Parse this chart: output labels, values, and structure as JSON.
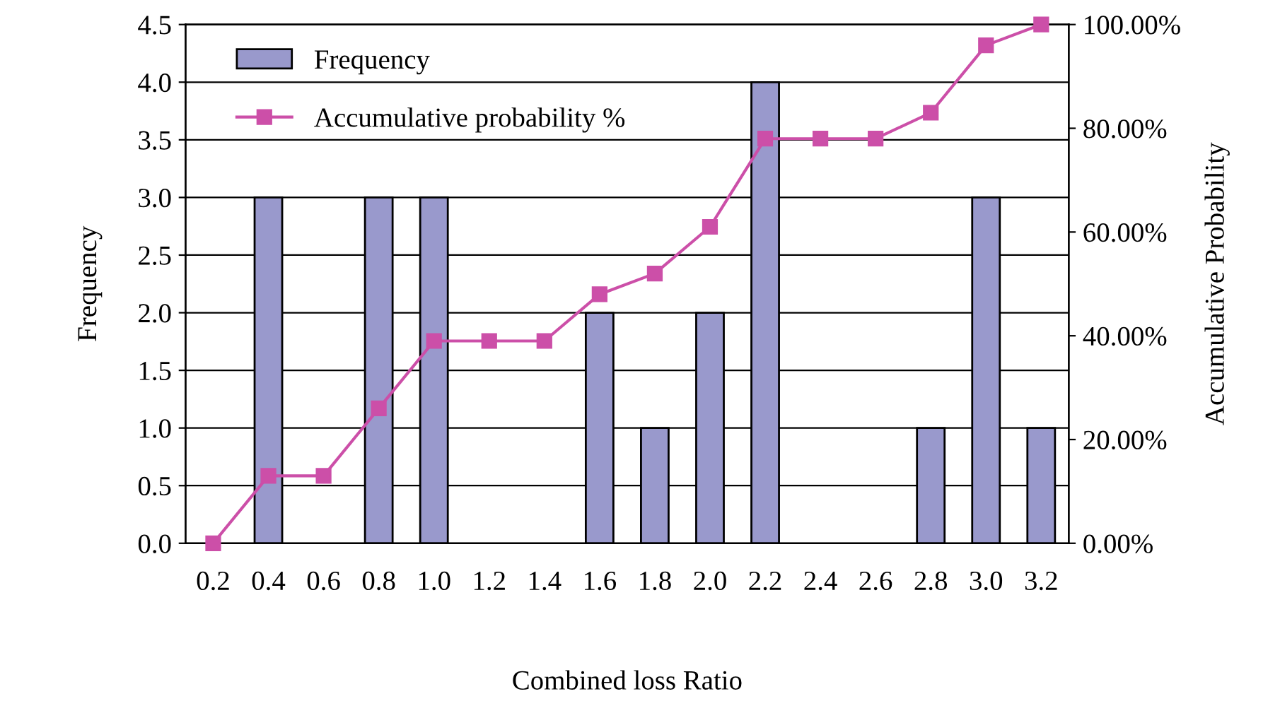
{
  "chart_data": {
    "type": "bar",
    "xlabel": "Combined loss Ratio",
    "ylabel": "Frequency",
    "y2label": "Accumulative Probability",
    "categories": [
      "0.2",
      "0.4",
      "0.6",
      "0.8",
      "1.0",
      "1.2",
      "1.4",
      "1.6",
      "1.8",
      "2.0",
      "2.2",
      "2.4",
      "2.6",
      "2.8",
      "3.0",
      "3.2"
    ],
    "series": [
      {
        "name": "Frequency",
        "color": "#9999cc",
        "values": [
          0,
          3,
          0,
          3,
          3,
          0,
          0,
          2,
          1,
          2,
          4,
          0,
          0,
          1,
          3,
          1
        ]
      },
      {
        "name": "Accumulative probability %",
        "type": "line",
        "axis": "y2",
        "color": "#cc4fa8",
        "marker": "square",
        "line_style": "solid",
        "values": [
          0,
          13,
          13,
          26,
          39,
          39,
          39,
          48,
          52,
          61,
          78,
          78,
          78,
          83,
          96,
          100
        ]
      }
    ],
    "ylim": [
      0,
      4.5
    ],
    "yticks": [
      {
        "value": 0,
        "label": "0.0"
      },
      {
        "value": 0.5,
        "label": "0.5"
      },
      {
        "value": 1,
        "label": "1.0"
      },
      {
        "value": 1.5,
        "label": "1.5"
      },
      {
        "value": 2,
        "label": "2.0"
      },
      {
        "value": 2.5,
        "label": "2.5"
      },
      {
        "value": 3,
        "label": "3.0"
      },
      {
        "value": 3.5,
        "label": "3.5"
      },
      {
        "value": 4,
        "label": "4.0"
      },
      {
        "value": 4.5,
        "label": "4.5"
      }
    ],
    "y2lim": [
      0,
      100
    ],
    "y2ticks": [
      {
        "value": 0,
        "label": "0.00%"
      },
      {
        "value": 20,
        "label": "20.00%"
      },
      {
        "value": 40,
        "label": "40.00%"
      },
      {
        "value": 60,
        "label": "60.00%"
      },
      {
        "value": 80,
        "label": "80.00%"
      },
      {
        "value": 100,
        "label": "100.00%"
      }
    ],
    "grid": "y",
    "legend": "top left"
  }
}
